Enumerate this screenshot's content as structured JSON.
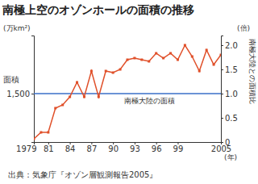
{
  "chart_data": {
    "type": "line",
    "title": "南極上空のオゾンホールの面積の推移",
    "ylabel": "面積",
    "y_unit": "(万km²)",
    "y2label": "南極大陸との面積比",
    "y2_unit": "(倍)",
    "x_unit": "(年)",
    "source": "出典：気象庁『オゾン層観測報告2005』",
    "x": [
      1979,
      1980,
      1981,
      1982,
      1983,
      1984,
      1985,
      1986,
      1987,
      1988,
      1989,
      1990,
      1991,
      1992,
      1993,
      1994,
      1995,
      1996,
      1997,
      1998,
      1999,
      2000,
      2001,
      2002,
      2003,
      2004,
      2005
    ],
    "xlim": [
      1979,
      2005
    ],
    "xticks": [
      1979,
      {
        "value": 1981,
        "label": "81"
      },
      {
        "value": 1984,
        "label": "84"
      },
      {
        "value": 1987,
        "label": "87"
      },
      {
        "value": 1990,
        "label": "90"
      },
      {
        "value": 1993,
        "label": "93"
      },
      {
        "value": 1996,
        "label": "96"
      },
      {
        "value": 1999,
        "label": "99"
      },
      2005
    ],
    "ylim": [
      0,
      3300
    ],
    "yticks": [
      {
        "value": 1500,
        "label": "1,500"
      }
    ],
    "y2lim": [
      0,
      2.2
    ],
    "y2ticks": [
      0,
      0.5,
      {
        "value": 1,
        "label": "1.0"
      },
      {
        "value": 1.5,
        "label": "1.5"
      },
      {
        "value": 2,
        "label": "2.0"
      }
    ],
    "series": [
      {
        "color": "#e0502a",
        "marker": "square",
        "values": [
          100,
          300,
          300,
          1050,
          1150,
          1400,
          1850,
          1400,
          2200,
          1400,
          2200,
          2150,
          2250,
          2550,
          2600,
          2550,
          2500,
          2750,
          2600,
          2750,
          2550,
          3000,
          2650,
          2200,
          2850,
          2400,
          2700
        ]
      }
    ],
    "annotations": [
      {
        "text": "南極大陸の面積",
        "y": 1,
        "axis": "y2",
        "color": "#3a6fc8"
      }
    ]
  }
}
